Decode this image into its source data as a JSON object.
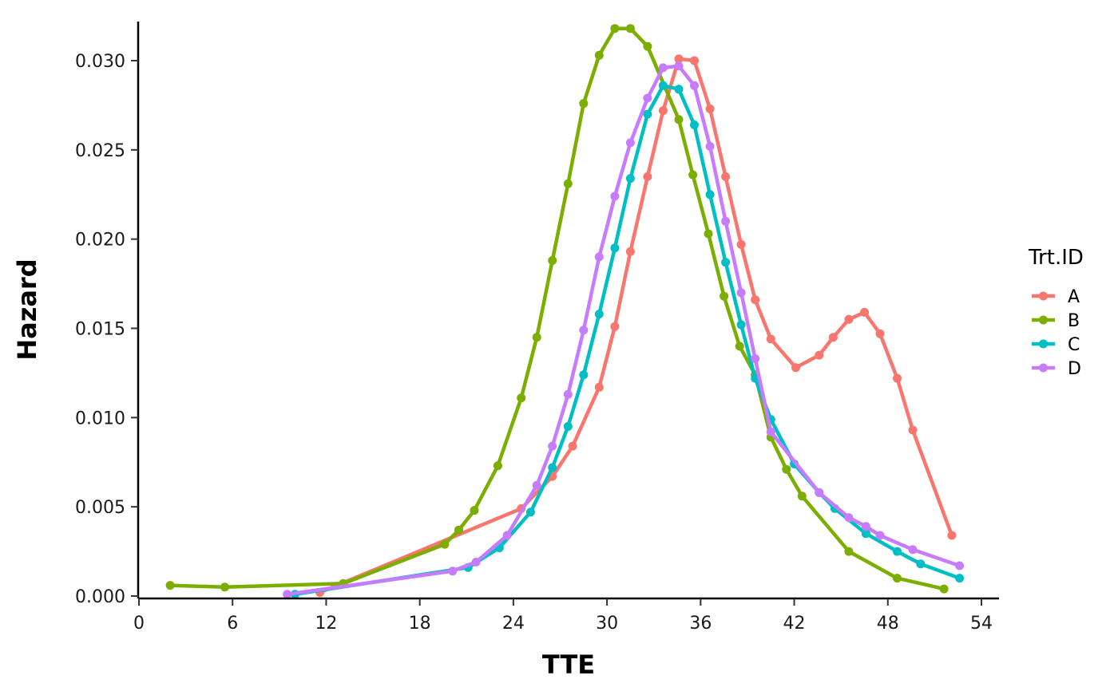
{
  "chart_data": {
    "type": "line",
    "xlabel": "TTE",
    "ylabel": "Hazard",
    "xlim": [
      0,
      55
    ],
    "ylim": [
      0,
      0.0321
    ],
    "x_ticks": [
      "0",
      "6",
      "12",
      "18",
      "24",
      "30",
      "36",
      "42",
      "48",
      "54"
    ],
    "y_ticks": [
      "0.000",
      "0.005",
      "0.010",
      "0.015",
      "0.020",
      "0.025",
      "0.030"
    ],
    "grid": false,
    "legend_title": "Trt.ID",
    "legend_position": "right",
    "series": [
      {
        "name": "A",
        "color": "#F8766D",
        "x": [
          11.6,
          24.5,
          26.5,
          27.8,
          29.5,
          30.5,
          31.5,
          32.6,
          33.6,
          34.6,
          35.6,
          36.6,
          37.6,
          38.6,
          39.5,
          40.5,
          42.1,
          43.6,
          44.5,
          45.5,
          46.5,
          47.5,
          48.6,
          49.6,
          52.1
        ],
        "y": [
          0.0002,
          0.0049,
          0.0067,
          0.0084,
          0.0117,
          0.0151,
          0.0193,
          0.0235,
          0.0272,
          0.0301,
          0.03,
          0.0273,
          0.0235,
          0.0197,
          0.0166,
          0.0144,
          0.0128,
          0.0135,
          0.0145,
          0.0155,
          0.0159,
          0.0147,
          0.0122,
          0.0093,
          0.0034
        ]
      },
      {
        "name": "B",
        "color": "#7CAE00",
        "x": [
          2.0,
          5.5,
          13.1,
          19.6,
          20.5,
          21.5,
          23.0,
          24.5,
          25.5,
          26.5,
          27.5,
          28.5,
          29.5,
          30.5,
          31.5,
          32.6,
          34.6,
          35.5,
          36.5,
          37.5,
          38.5,
          39.5,
          40.5,
          41.5,
          42.5,
          45.5,
          48.6,
          51.6
        ],
        "y": [
          0.0006,
          0.0005,
          0.0007,
          0.0029,
          0.0037,
          0.0048,
          0.0073,
          0.0111,
          0.0145,
          0.0188,
          0.0231,
          0.0276,
          0.0303,
          0.0318,
          0.0318,
          0.0308,
          0.0267,
          0.0236,
          0.0203,
          0.0168,
          0.014,
          0.0124,
          0.0089,
          0.0071,
          0.0056,
          0.0025,
          0.001,
          0.0004
        ]
      },
      {
        "name": "C",
        "color": "#00BFC4",
        "x": [
          10.0,
          21.1,
          23.1,
          25.1,
          26.5,
          27.5,
          28.5,
          29.5,
          30.5,
          31.5,
          32.6,
          33.6,
          34.6,
          35.6,
          36.6,
          37.6,
          38.6,
          39.5,
          40.5,
          42.0,
          43.6,
          44.6,
          46.6,
          48.6,
          50.1,
          52.6
        ],
        "y": [
          0.0001,
          0.0016,
          0.0027,
          0.0047,
          0.0072,
          0.0095,
          0.0124,
          0.0158,
          0.0195,
          0.0234,
          0.027,
          0.0286,
          0.0284,
          0.0264,
          0.0225,
          0.0187,
          0.0152,
          0.0122,
          0.0099,
          0.0074,
          0.0058,
          0.0049,
          0.0035,
          0.0025,
          0.0018,
          0.001
        ]
      },
      {
        "name": "D",
        "color": "#C77CFF",
        "x": [
          9.5,
          20.1,
          21.6,
          23.6,
          25.5,
          26.5,
          27.5,
          28.5,
          29.5,
          30.5,
          31.5,
          32.6,
          33.6,
          34.6,
          35.6,
          36.6,
          37.6,
          38.6,
          39.5,
          40.5,
          43.6,
          45.5,
          46.6,
          47.5,
          49.6,
          52.6
        ],
        "y": [
          0.0001,
          0.0014,
          0.0019,
          0.0034,
          0.0062,
          0.0084,
          0.0113,
          0.0149,
          0.019,
          0.0224,
          0.0254,
          0.0279,
          0.0296,
          0.0297,
          0.0286,
          0.0252,
          0.021,
          0.017,
          0.0133,
          0.0092,
          0.0058,
          0.0044,
          0.0039,
          0.0034,
          0.0026,
          0.0017
        ]
      }
    ]
  }
}
